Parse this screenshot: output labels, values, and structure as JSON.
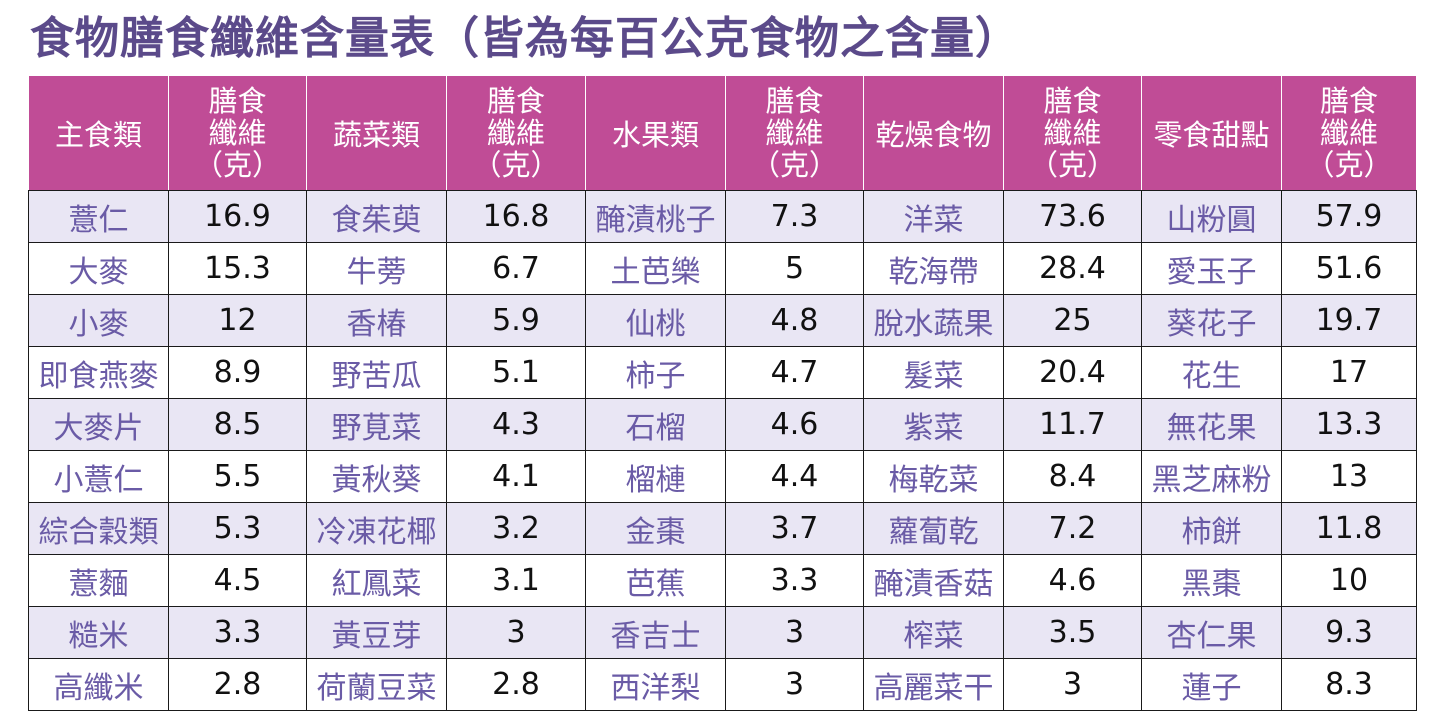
{
  "title": "食物膳食纖維含量表（皆為每百公克食物之含量）",
  "headers": {
    "fiber_line1": "膳食",
    "fiber_line2": "纖維",
    "fiber_line3": "（克）",
    "categories": [
      "主食類",
      "蔬菜類",
      "水果類",
      "乾燥食物",
      "零食甜點"
    ]
  },
  "rows": [
    [
      [
        "薏仁",
        "16.9"
      ],
      [
        "食茱萸",
        "16.8"
      ],
      [
        "醃漬桃子",
        "7.3"
      ],
      [
        "洋菜",
        "73.6"
      ],
      [
        "山粉圓",
        "57.9"
      ]
    ],
    [
      [
        "大麥",
        "15.3"
      ],
      [
        "牛蒡",
        "6.7"
      ],
      [
        "土芭樂",
        "5"
      ],
      [
        "乾海帶",
        "28.4"
      ],
      [
        "愛玉子",
        "51.6"
      ]
    ],
    [
      [
        "小麥",
        "12"
      ],
      [
        "香椿",
        "5.9"
      ],
      [
        "仙桃",
        "4.8"
      ],
      [
        "脫水蔬果",
        "25"
      ],
      [
        "葵花子",
        "19.7"
      ]
    ],
    [
      [
        "即食燕麥",
        "8.9"
      ],
      [
        "野苦瓜",
        "5.1"
      ],
      [
        "柿子",
        "4.7"
      ],
      [
        "髮菜",
        "20.4"
      ],
      [
        "花生",
        "17"
      ]
    ],
    [
      [
        "大麥片",
        "8.5"
      ],
      [
        "野莧菜",
        "4.3"
      ],
      [
        "石榴",
        "4.6"
      ],
      [
        "紫菜",
        "11.7"
      ],
      [
        "無花果",
        "13.3"
      ]
    ],
    [
      [
        "小薏仁",
        "5.5"
      ],
      [
        "黃秋葵",
        "4.1"
      ],
      [
        "榴槤",
        "4.4"
      ],
      [
        "梅乾菜",
        "8.4"
      ],
      [
        "黑芝麻粉",
        "13"
      ]
    ],
    [
      [
        "綜合穀類",
        "5.3"
      ],
      [
        "冷凍花椰",
        "3.2"
      ],
      [
        "金棗",
        "3.7"
      ],
      [
        "蘿蔔乾",
        "7.2"
      ],
      [
        "柿餅",
        "11.8"
      ]
    ],
    [
      [
        "薏麵",
        "4.5"
      ],
      [
        "紅鳳菜",
        "3.1"
      ],
      [
        "芭蕉",
        "3.3"
      ],
      [
        "醃漬香菇",
        "4.6"
      ],
      [
        "黑棗",
        "10"
      ]
    ],
    [
      [
        "糙米",
        "3.3"
      ],
      [
        "黃豆芽",
        "3"
      ],
      [
        "香吉士",
        "3"
      ],
      [
        "榨菜",
        "3.5"
      ],
      [
        "杏仁果",
        "9.3"
      ]
    ],
    [
      [
        "高纖米",
        "2.8"
      ],
      [
        "荷蘭豆菜",
        "2.8"
      ],
      [
        "西洋梨",
        "3"
      ],
      [
        "高麗菜干",
        "3"
      ],
      [
        "蓮子",
        "8.3"
      ]
    ]
  ]
}
